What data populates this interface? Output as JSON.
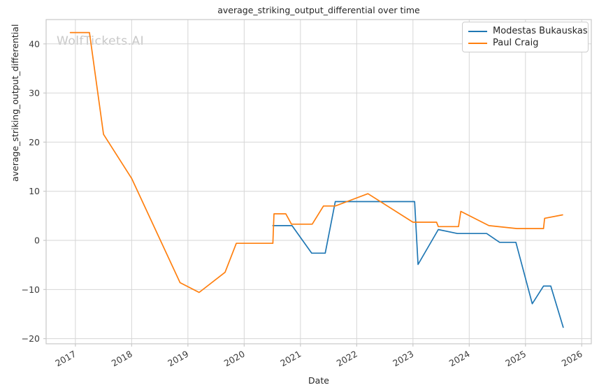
{
  "figure": {
    "title": "average_striking_output_differential over time",
    "xlabel": "Date",
    "ylabel": "average_striking_output_differential",
    "watermark": "WolfTickets.AI"
  },
  "chart_data": {
    "type": "line",
    "title": "average_striking_output_differential over time",
    "xlabel": "Date",
    "ylabel": "average_striking_output_differential",
    "grid": true,
    "legend_position": "upper right",
    "x_ticks": [
      2017,
      2018,
      2019,
      2020,
      2021,
      2022,
      2023,
      2024,
      2025,
      2026
    ],
    "y_ticks": [
      -20,
      -10,
      0,
      10,
      20,
      30,
      40
    ],
    "xlim": [
      2016.48,
      2026.17
    ],
    "ylim": [
      -21.05,
      44.95
    ],
    "series": [
      {
        "name": "Modestas Bukauskas",
        "color": "#1f77b4",
        "points": [
          [
            2020.51,
            3.0
          ],
          [
            2020.85,
            3.0
          ],
          [
            2021.2,
            -2.6
          ],
          [
            2021.44,
            -2.6
          ],
          [
            2021.62,
            7.9
          ],
          [
            2023.03,
            7.9
          ],
          [
            2023.09,
            -4.9
          ],
          [
            2023.45,
            2.2
          ],
          [
            2023.79,
            1.4
          ],
          [
            2024.31,
            1.4
          ],
          [
            2024.54,
            -0.4
          ],
          [
            2024.83,
            -0.4
          ],
          [
            2025.12,
            -12.9
          ],
          [
            2025.32,
            -9.3
          ],
          [
            2025.45,
            -9.3
          ],
          [
            2025.67,
            -17.7
          ]
        ]
      },
      {
        "name": "Paul Craig",
        "color": "#ff7f0e",
        "points": [
          [
            2016.91,
            42.3
          ],
          [
            2017.25,
            42.3
          ],
          [
            2017.5,
            21.6
          ],
          [
            2018.0,
            12.6
          ],
          [
            2018.86,
            -8.6
          ],
          [
            2019.2,
            -10.6
          ],
          [
            2019.66,
            -6.5
          ],
          [
            2019.86,
            -0.6
          ],
          [
            2020.51,
            -0.6
          ],
          [
            2020.53,
            5.4
          ],
          [
            2020.74,
            5.4
          ],
          [
            2020.84,
            3.3
          ],
          [
            2021.21,
            3.3
          ],
          [
            2021.41,
            7.0
          ],
          [
            2021.62,
            7.0
          ],
          [
            2022.2,
            9.5
          ],
          [
            2023.0,
            3.7
          ],
          [
            2023.42,
            3.7
          ],
          [
            2023.45,
            2.8
          ],
          [
            2023.81,
            2.8
          ],
          [
            2023.85,
            5.9
          ],
          [
            2024.35,
            3.0
          ],
          [
            2024.85,
            2.4
          ],
          [
            2025.32,
            2.4
          ],
          [
            2025.34,
            4.5
          ],
          [
            2025.66,
            5.2
          ]
        ]
      }
    ],
    "style": {
      "grid_color": "#d6d6d6",
      "spine_color": "#c9c9c9",
      "tick_label_color": "#3b3b3b",
      "line_width": 1.7
    }
  }
}
